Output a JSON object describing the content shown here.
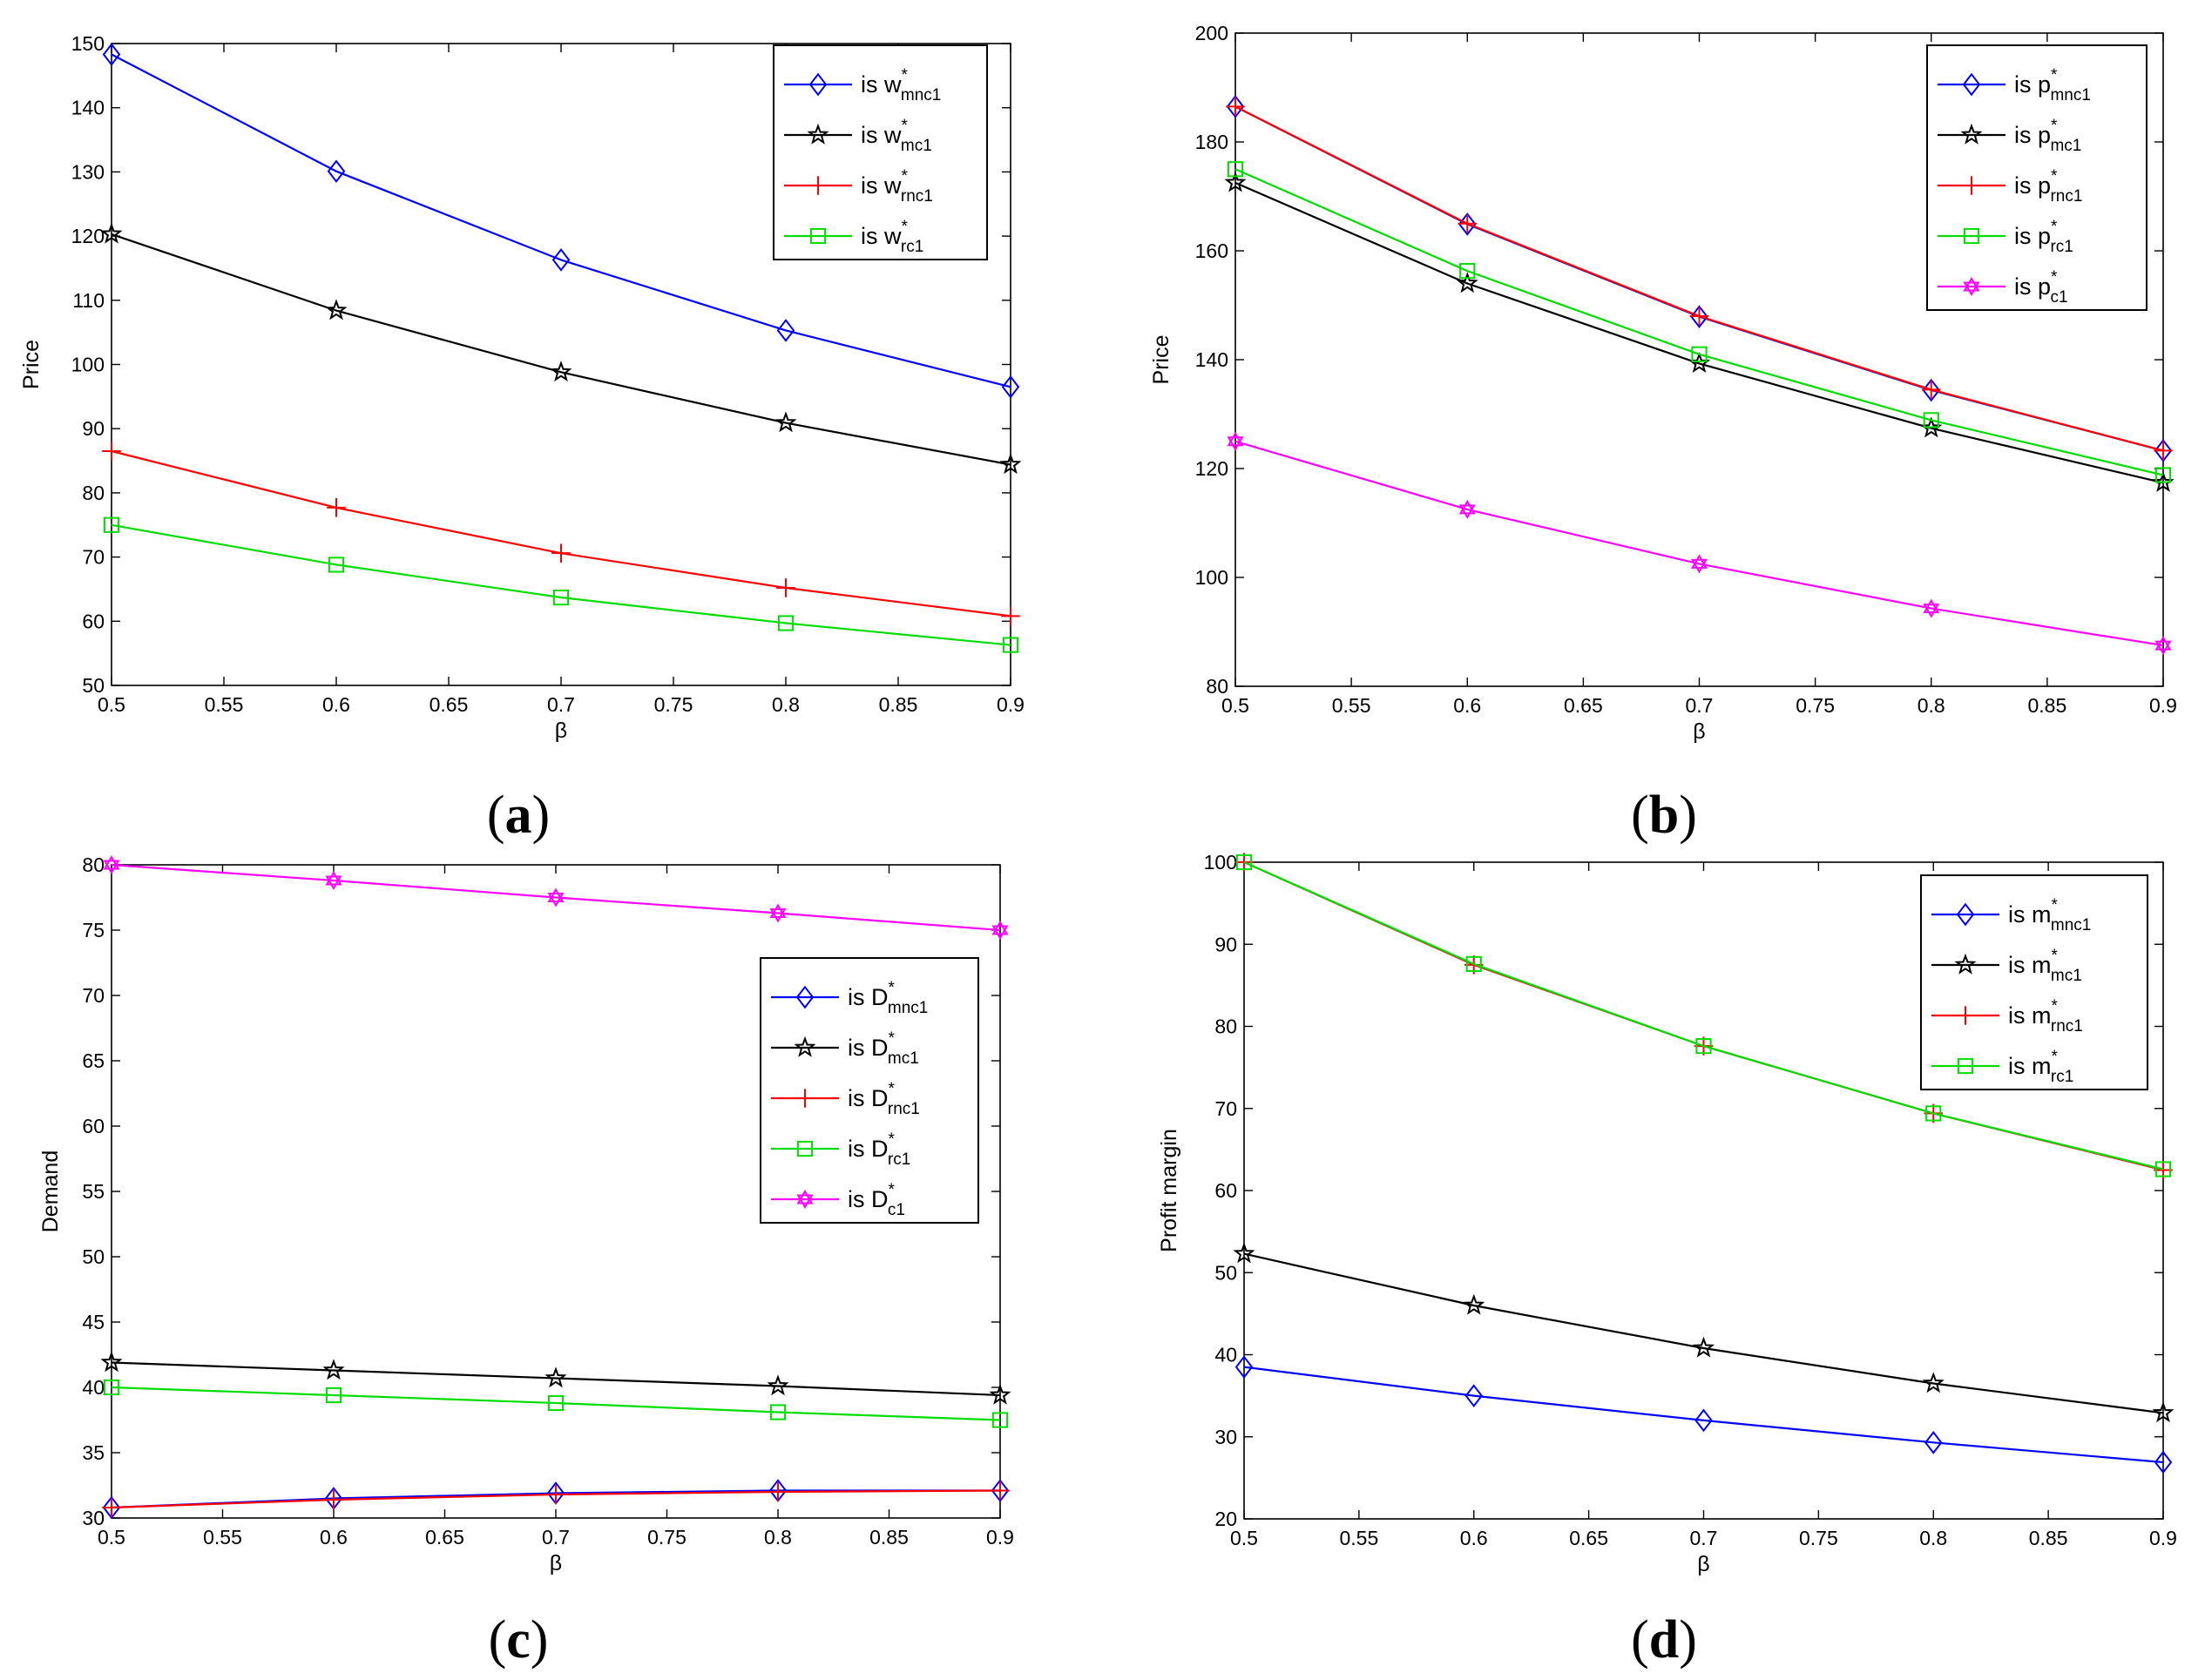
{
  "chart_data": [
    {
      "type": "line",
      "panel_label": "a",
      "xlabel": "β",
      "ylabel": "Price",
      "xlim": [
        0.5,
        0.9
      ],
      "ylim": [
        50,
        150
      ],
      "xticks": [
        "0.5",
        "0.55",
        "0.6",
        "0.65",
        "0.7",
        "0.75",
        "0.8",
        "0.85",
        "0.9"
      ],
      "yticks": [
        "50",
        "60",
        "70",
        "80",
        "90",
        "100",
        "110",
        "120",
        "130",
        "140",
        "150"
      ],
      "legend_position": "top-right",
      "x": [
        0.5,
        0.6,
        0.7,
        0.8,
        0.9
      ],
      "series": [
        {
          "prefix": "is w",
          "sup": "*",
          "sub": "mnc1",
          "color": "#0000ff",
          "marker": "diamond",
          "values": [
            148.3,
            130.1,
            116.3,
            105.3,
            96.5
          ]
        },
        {
          "prefix": "is w",
          "sup": "*",
          "sub": "mc1",
          "color": "#000000",
          "marker": "star",
          "values": [
            120.3,
            108.4,
            98.8,
            90.9,
            84.4
          ]
        },
        {
          "prefix": "is w",
          "sup": "*",
          "sub": "rnc1",
          "color": "#ff0000",
          "marker": "plus",
          "values": [
            86.5,
            77.7,
            70.6,
            65.2,
            60.8
          ]
        },
        {
          "prefix": "is w",
          "sup": "*",
          "sub": "rc1",
          "color": "#00dd00",
          "marker": "square",
          "values": [
            75.0,
            68.8,
            63.7,
            59.7,
            56.3
          ]
        }
      ]
    },
    {
      "type": "line",
      "panel_label": "b",
      "xlabel": "β",
      "ylabel": "Price",
      "xlim": [
        0.5,
        0.9
      ],
      "ylim": [
        80,
        200
      ],
      "xticks": [
        "0.5",
        "0.55",
        "0.6",
        "0.65",
        "0.7",
        "0.75",
        "0.8",
        "0.85",
        "0.9"
      ],
      "yticks": [
        "80",
        "100",
        "120",
        "140",
        "160",
        "180",
        "200"
      ],
      "legend_position": "top-right",
      "x": [
        0.5,
        0.6,
        0.7,
        0.8,
        0.9
      ],
      "series": [
        {
          "prefix": "is p",
          "sup": "*",
          "sub": "mnc1",
          "color": "#0000ff",
          "marker": "diamond",
          "values": [
            186.5,
            164.9,
            147.9,
            134.4,
            123.3
          ]
        },
        {
          "prefix": "is p",
          "sup": "*",
          "sub": "mc1",
          "color": "#000000",
          "marker": "star",
          "values": [
            172.5,
            154.0,
            139.3,
            127.4,
            117.4
          ]
        },
        {
          "prefix": "is p",
          "sup": "*",
          "sub": "rnc1",
          "color": "#ff0000",
          "marker": "plus",
          "values": [
            186.5,
            165.0,
            148.0,
            134.5,
            123.3
          ]
        },
        {
          "prefix": "is p",
          "sup": "*",
          "sub": "rc1",
          "color": "#00dd00",
          "marker": "square",
          "values": [
            175.0,
            156.3,
            141.0,
            128.9,
            118.8
          ]
        },
        {
          "prefix": "is p",
          "sup": "*",
          "sub": "c1",
          "color": "#ff00ff",
          "marker": "hexagram",
          "values": [
            125.0,
            112.5,
            102.5,
            94.3,
            87.5
          ]
        }
      ]
    },
    {
      "type": "line",
      "panel_label": "c",
      "xlabel": "β",
      "ylabel": "Demand",
      "xlim": [
        0.5,
        0.9
      ],
      "ylim": [
        30,
        80
      ],
      "xticks": [
        "0.5",
        "0.55",
        "0.6",
        "0.65",
        "0.7",
        "0.75",
        "0.8",
        "0.85",
        "0.9"
      ],
      "yticks": [
        "30",
        "35",
        "40",
        "45",
        "50",
        "55",
        "60",
        "65",
        "70",
        "75",
        "80"
      ],
      "legend_position": "center-right",
      "x": [
        0.5,
        0.6,
        0.7,
        0.8,
        0.9
      ],
      "series": [
        {
          "prefix": "is D",
          "sup": "*",
          "sub": "mnc1",
          "color": "#0000ff",
          "marker": "diamond",
          "values": [
            30.8,
            31.5,
            31.9,
            32.1,
            32.1
          ]
        },
        {
          "prefix": "is D",
          "sup": "*",
          "sub": "mc1",
          "color": "#000000",
          "marker": "star",
          "values": [
            41.9,
            41.3,
            40.7,
            40.1,
            39.4
          ]
        },
        {
          "prefix": "is D",
          "sup": "*",
          "sub": "rnc1",
          "color": "#ff0000",
          "marker": "plus",
          "values": [
            30.8,
            31.4,
            31.8,
            32.0,
            32.1
          ]
        },
        {
          "prefix": "is D",
          "sup": "*",
          "sub": "rc1",
          "color": "#00dd00",
          "marker": "square",
          "values": [
            40.0,
            39.4,
            38.8,
            38.1,
            37.5
          ]
        },
        {
          "prefix": "is D",
          "sup": "*",
          "sub": "c1",
          "color": "#ff00ff",
          "marker": "hexagram",
          "values": [
            80.0,
            78.8,
            77.5,
            76.3,
            75.0
          ]
        }
      ]
    },
    {
      "type": "line",
      "panel_label": "d",
      "xlabel": "β",
      "ylabel": "Profit margin",
      "xlim": [
        0.5,
        0.9
      ],
      "ylim": [
        20,
        100
      ],
      "xticks": [
        "0.5",
        "0.55",
        "0.6",
        "0.65",
        "0.7",
        "0.75",
        "0.8",
        "0.85",
        "0.9"
      ],
      "yticks": [
        "20",
        "30",
        "40",
        "50",
        "60",
        "70",
        "80",
        "90",
        "100"
      ],
      "legend_position": "top-right",
      "x": [
        0.5,
        0.6,
        0.7,
        0.8,
        0.9
      ],
      "series": [
        {
          "prefix": "is m",
          "sup": "*",
          "sub": "mnc1",
          "color": "#0000ff",
          "marker": "diamond",
          "values": [
            38.5,
            35.0,
            32.0,
            29.3,
            26.9
          ]
        },
        {
          "prefix": "is m",
          "sup": "*",
          "sub": "mc1",
          "color": "#000000",
          "marker": "star",
          "values": [
            52.3,
            46.0,
            40.8,
            36.5,
            32.9
          ]
        },
        {
          "prefix": "is m",
          "sup": "*",
          "sub": "rnc1",
          "color": "#ff0000",
          "marker": "plus",
          "values": [
            100.0,
            87.5,
            77.6,
            69.4,
            62.5
          ]
        },
        {
          "prefix": "is m",
          "sup": "*",
          "sub": "rc1",
          "color": "#00dd00",
          "marker": "square",
          "values": [
            100.0,
            87.6,
            77.6,
            69.4,
            62.6
          ]
        }
      ]
    }
  ]
}
